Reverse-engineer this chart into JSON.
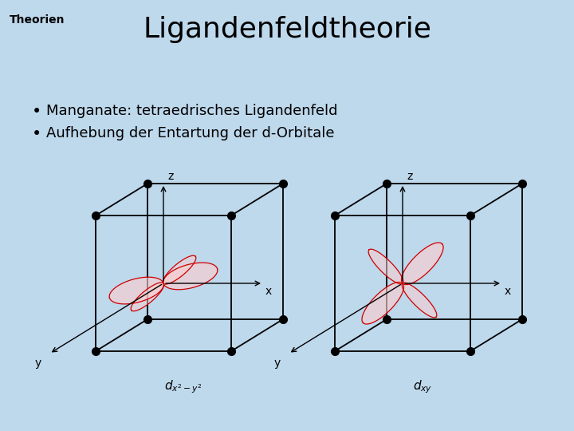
{
  "background_color": "#bed8ec",
  "title": "Ligandenfeldtheorie",
  "title_fontsize": 26,
  "header": "Theorien",
  "header_fontsize": 10,
  "bullet1": "Manganate: tetraedrisches Ligandenfeld",
  "bullet2": "Aufhebung der Entartung der d-Orbitale",
  "bullet_fontsize": 13,
  "orbital_color_edge": "#cc0000",
  "orbital_color_face": "#ffcccc",
  "orbital_alpha": 0.6
}
